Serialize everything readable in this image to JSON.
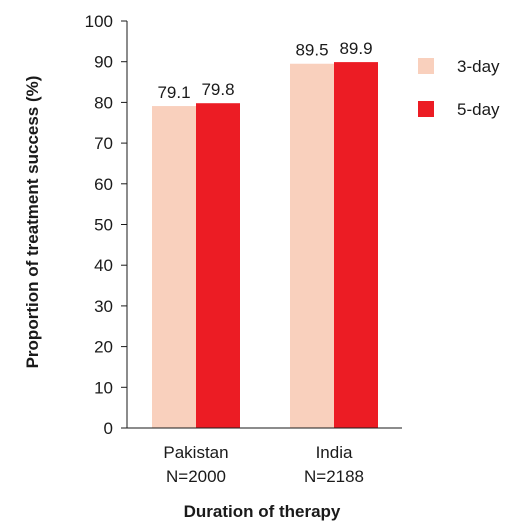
{
  "chart_data": {
    "type": "bar",
    "categories": [
      "Pakistan",
      "India"
    ],
    "category_sublabels": [
      "N=2000",
      "N=2188"
    ],
    "series": [
      {
        "name": "3-day",
        "values": [
          79.1,
          89.5
        ],
        "color": "#F9D0BD"
      },
      {
        "name": "5-day",
        "values": [
          79.8,
          89.9
        ],
        "color": "#EC1C24"
      }
    ],
    "data_labels": [
      [
        "79.1",
        "89.5"
      ],
      [
        "79.8",
        "89.9"
      ]
    ],
    "xlabel": "Duration of therapy",
    "ylabel": "Proportion of treatment success (%)",
    "ylim": [
      0,
      100
    ],
    "yticks": [
      0,
      10,
      20,
      30,
      40,
      50,
      60,
      70,
      80,
      90,
      100
    ],
    "grid": false,
    "legend_position": "right"
  }
}
